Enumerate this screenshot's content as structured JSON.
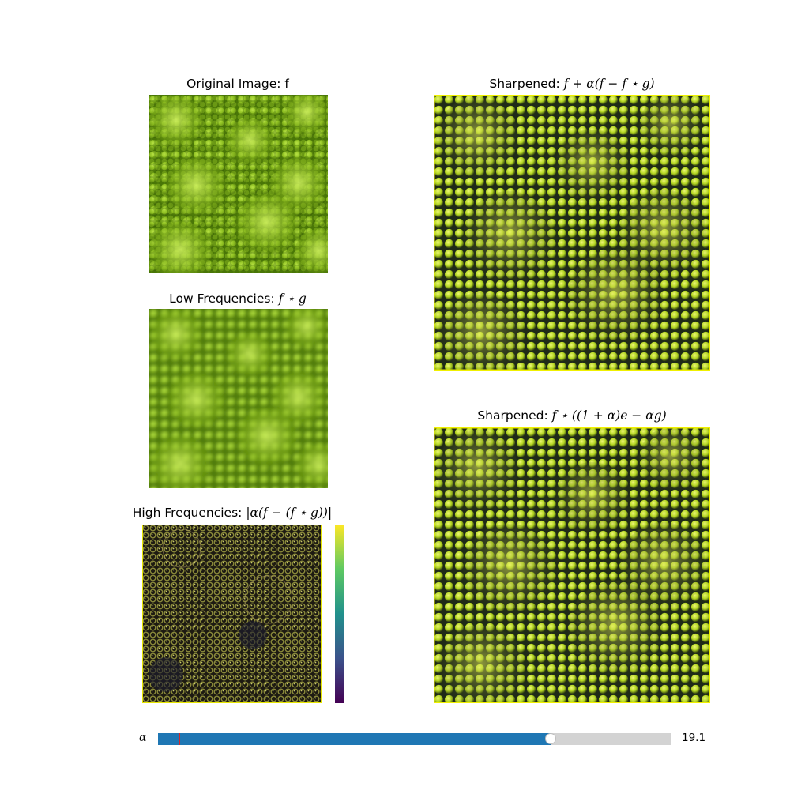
{
  "panels": {
    "original": {
      "title": "Original Image: f",
      "image": "romanesco-original"
    },
    "low": {
      "title_text": "Low Frequencies: ",
      "title_math": "f ⋆ g",
      "image": "romanesco-blurred"
    },
    "high": {
      "title_text": "High Frequencies: ",
      "title_math": "|α(f − (f ⋆ g))|",
      "image": "romanesco-highpass"
    },
    "sharp1": {
      "title_text": "Sharpened: ",
      "title_math": "f + α(f − f ⋆ g)",
      "image": "romanesco-sharpened-1"
    },
    "sharp2": {
      "title_text": "Sharpened: ",
      "title_math": "f ⋆ ((1 + α)e − αg)",
      "image": "romanesco-sharpened-2"
    }
  },
  "colorbar": {
    "colormap": "viridis",
    "colors": [
      "#440154",
      "#3b528b",
      "#21918c",
      "#5ec962",
      "#fde725"
    ]
  },
  "slider": {
    "label": "α",
    "value_text": "19.1",
    "value_fraction": 0.765,
    "initial_fraction": 0.04,
    "fill_color": "#1f77b4",
    "track_color": "#d3d3d3",
    "init_marker_color": "#d62728"
  },
  "colors": {
    "veg_dark": "#2f4d04",
    "veg_mid": "#6a9a10",
    "veg_light": "#b6e23a",
    "sharp_yellow": "#e8f000"
  }
}
